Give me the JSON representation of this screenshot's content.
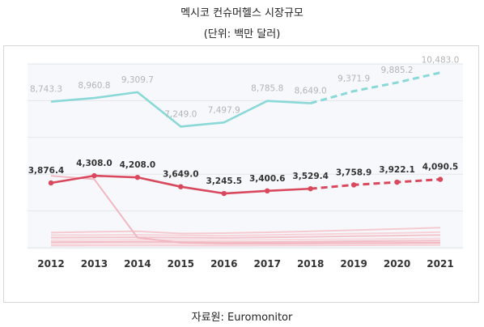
{
  "header": {
    "title": "멕시코 컨슈머헬스 시장규모",
    "unit": "(단위: 백만 달러)"
  },
  "footer": {
    "source": "자료원: Euromonitor"
  },
  "chart_data": {
    "type": "line",
    "title": "멕시코 컨슈머헬스 시장규모",
    "subtitle": "(단위: 백만 달러)",
    "categories": [
      "2012",
      "2013",
      "2014",
      "2015",
      "2016",
      "2017",
      "2018",
      "2019",
      "2020",
      "2021"
    ],
    "forecast_from_index": 6,
    "grid": true,
    "ylim": [
      0,
      11000
    ],
    "series": [
      {
        "values": [
          8743.3,
          8960.8,
          9309.7,
          7249.0,
          7497.9,
          8785.8,
          8649.0,
          9371.9,
          9885.2,
          10483.0
        ],
        "labels": [
          "8,743.3",
          "8,960.8",
          "9,309.7",
          "7,249.0",
          "7,497.9",
          "8,785.8",
          "8,649.0",
          "9,371.9",
          "9,885.2",
          "10,483.0"
        ],
        "color": "#8ad8d8",
        "markers": false,
        "label_style": "light"
      },
      {
        "values": [
          3876.4,
          4308.0,
          4208.0,
          3649.0,
          3245.5,
          3400.6,
          3529.4,
          3758.9,
          3922.1,
          4090.5
        ],
        "labels": [
          "3,876.4",
          "4,308.0",
          "4,208.0",
          "3,649.0",
          "3,245.5",
          "3,400.6",
          "3,529.4",
          "3,758.9",
          "3,922.1",
          "4,090.5"
        ],
        "color": "#d9485d",
        "markers": true,
        "label_style": "bold"
      },
      {
        "values": [
          4300,
          4100,
          600,
          300,
          250,
          250,
          260,
          270,
          280,
          290
        ],
        "color": "#f2b7c0",
        "markers": false,
        "label_style": "none"
      },
      {
        "values": [
          900,
          950,
          980,
          850,
          870,
          920,
          980,
          1050,
          1120,
          1200
        ],
        "color": "#f5cbd1",
        "markers": false,
        "label_style": "none"
      },
      {
        "values": [
          750,
          760,
          770,
          740,
          720,
          760,
          800,
          840,
          880,
          930
        ],
        "color": "#f7d3d8",
        "markers": false,
        "label_style": "none"
      },
      {
        "values": [
          600,
          610,
          620,
          600,
          590,
          620,
          650,
          690,
          720,
          760
        ],
        "color": "#f3c4cb",
        "markers": false,
        "label_style": "none"
      },
      {
        "values": [
          450,
          460,
          470,
          460,
          450,
          470,
          490,
          510,
          530,
          560
        ],
        "color": "#f7d8dc",
        "markers": false,
        "label_style": "none"
      },
      {
        "values": [
          330,
          340,
          350,
          340,
          330,
          340,
          360,
          380,
          400,
          420
        ],
        "color": "#f1bcc5",
        "markers": false,
        "label_style": "none"
      },
      {
        "values": [
          220,
          230,
          240,
          230,
          225,
          235,
          250,
          265,
          280,
          295
        ],
        "color": "#f8dde1",
        "markers": false,
        "label_style": "none"
      },
      {
        "values": [
          120,
          125,
          130,
          125,
          120,
          125,
          135,
          145,
          155,
          165
        ],
        "color": "#f5cfd5",
        "markers": false,
        "label_style": "none"
      }
    ]
  }
}
